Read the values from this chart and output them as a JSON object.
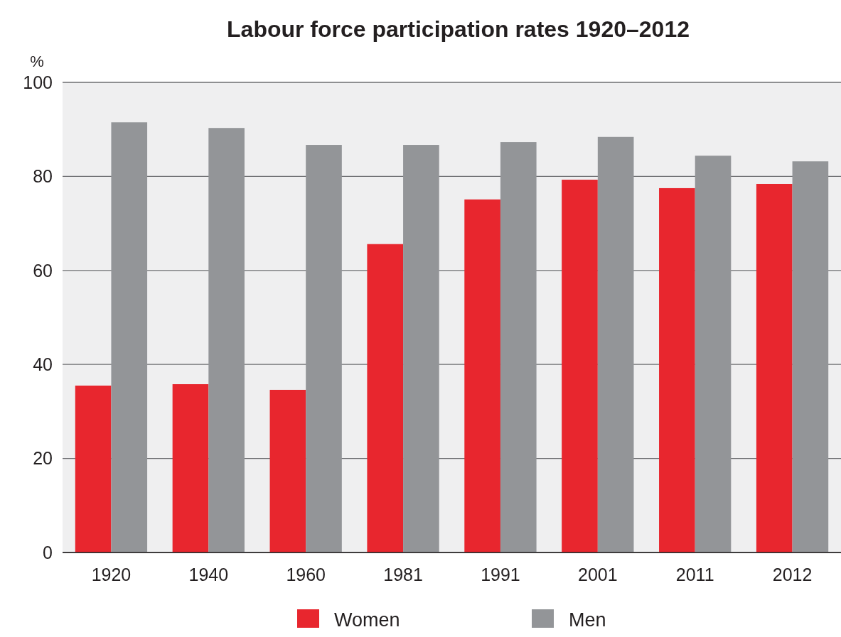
{
  "chart_data": {
    "type": "bar",
    "title": "Labour force participation rates 1920–2012",
    "ylabel": "%",
    "categories": [
      "1920",
      "1940",
      "1960",
      "1981",
      "1991",
      "2001",
      "2011",
      "2012"
    ],
    "series": [
      {
        "name": "Women",
        "color": "#e8262e",
        "values": [
          35.5,
          35.8,
          34.6,
          65.6,
          75.1,
          79.3,
          77.5,
          78.4
        ]
      },
      {
        "name": "Men",
        "color": "#939598",
        "values": [
          91.5,
          90.3,
          86.7,
          86.7,
          87.3,
          88.4,
          84.4,
          83.2
        ]
      }
    ],
    "ylim": [
      0,
      100
    ],
    "yticks": [
      0,
      20,
      40,
      60,
      80,
      100
    ],
    "grid": "y",
    "legend": "bottom"
  }
}
